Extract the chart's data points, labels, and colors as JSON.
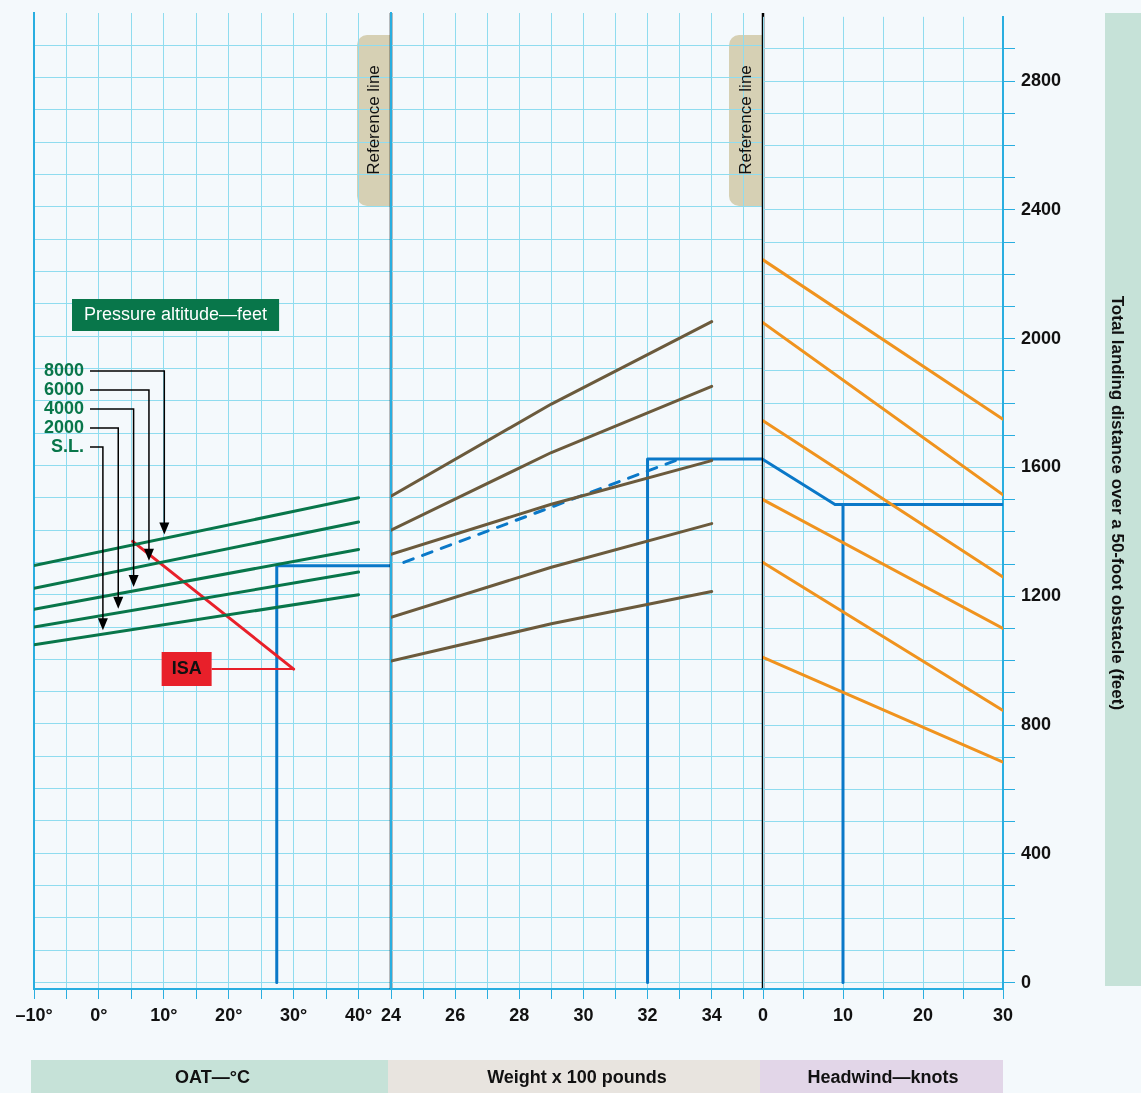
{
  "chart_data": [
    {
      "type": "line",
      "xlabel": "OAT—°C",
      "legend_title": "Pressure altitude—feet",
      "grid": true,
      "tick_labels": "x",
      "xlim": [
        -10,
        45
      ],
      "xticks": [
        {
          "value": -10,
          "label": "–10°"
        },
        {
          "value": -5,
          "label": null
        },
        {
          "value": 0,
          "label": "0°"
        },
        {
          "value": 5,
          "label": null
        },
        {
          "value": 10,
          "label": "10°"
        },
        {
          "value": 15,
          "label": null
        },
        {
          "value": 20,
          "label": "20°"
        },
        {
          "value": 25,
          "label": null
        },
        {
          "value": 30,
          "label": "30°"
        },
        {
          "value": 35,
          "label": null
        },
        {
          "value": 40,
          "label": "40°"
        }
      ],
      "ylim": [
        -20,
        3000
      ],
      "yticks": [
        0,
        {
          "value": 100,
          "label": null
        },
        {
          "value": 200,
          "label": null
        },
        {
          "value": 300,
          "label": null
        },
        400,
        {
          "value": 500,
          "label": null
        },
        {
          "value": 600,
          "label": null
        },
        {
          "value": 700,
          "label": null
        },
        800,
        {
          "value": 900,
          "label": null
        },
        {
          "value": 1000,
          "label": null
        },
        {
          "value": 1100,
          "label": null
        },
        1200,
        {
          "value": 1300,
          "label": null
        },
        {
          "value": 1400,
          "label": null
        },
        {
          "value": 1500,
          "label": null
        },
        1600,
        {
          "value": 1700,
          "label": null
        },
        {
          "value": 1800,
          "label": null
        },
        {
          "value": 1900,
          "label": null
        },
        2000,
        {
          "value": 2100,
          "label": null
        },
        {
          "value": 2200,
          "label": null
        },
        {
          "value": 2300,
          "label": null
        },
        2400,
        {
          "value": 2500,
          "label": null
        },
        {
          "value": 2600,
          "label": null
        },
        {
          "value": 2700,
          "label": null
        },
        2800,
        {
          "value": 2900,
          "label": null
        }
      ],
      "ref_lines": [
        {
          "axis": "x",
          "value": 45,
          "label": "Reference line",
          "color": "#000000"
        }
      ],
      "series": [
        {
          "name": "8000",
          "color": "#08764a",
          "x": [
            -10,
            40
          ],
          "values": [
            1290,
            1500
          ]
        },
        {
          "name": "6000",
          "color": "#08764a",
          "x": [
            -10,
            40
          ],
          "values": [
            1220,
            1425
          ]
        },
        {
          "name": "4000",
          "color": "#08764a",
          "x": [
            -10,
            40
          ],
          "values": [
            1155,
            1340
          ]
        },
        {
          "name": "2000",
          "color": "#08764a",
          "x": [
            -10,
            40
          ],
          "values": [
            1100,
            1270
          ]
        },
        {
          "name": "S.L.",
          "color": "#08764a",
          "x": [
            -10,
            40
          ],
          "values": [
            1045,
            1200
          ]
        },
        {
          "name": "ISA",
          "color": "#e8202a",
          "x": [
            5.2,
            30
          ],
          "values": [
            1365,
            970
          ]
        },
        {
          "color": "#0a78c8",
          "x": [
            27.4,
            27.4,
            45
          ],
          "values": [
            0,
            1290,
            1290
          ]
        }
      ]
    },
    {
      "type": "line",
      "xlabel": "Weight x 100 pounds",
      "grid": true,
      "tick_labels": "x",
      "xlim": [
        24,
        35.6
      ],
      "xticks": [
        24,
        {
          "value": 25,
          "label": null
        },
        26,
        {
          "value": 27,
          "label": null
        },
        28,
        {
          "value": 29,
          "label": null
        },
        30,
        {
          "value": 31,
          "label": null
        },
        32,
        {
          "value": 33,
          "label": null
        },
        34,
        {
          "value": 35,
          "label": null
        }
      ],
      "ylim": [
        -20,
        3000
      ],
      "yticks": [
        0,
        {
          "value": 100,
          "label": null
        },
        {
          "value": 200,
          "label": null
        },
        {
          "value": 300,
          "label": null
        },
        400,
        {
          "value": 500,
          "label": null
        },
        {
          "value": 600,
          "label": null
        },
        {
          "value": 700,
          "label": null
        },
        800,
        {
          "value": 900,
          "label": null
        },
        {
          "value": 1000,
          "label": null
        },
        {
          "value": 1100,
          "label": null
        },
        1200,
        {
          "value": 1300,
          "label": null
        },
        {
          "value": 1400,
          "label": null
        },
        {
          "value": 1500,
          "label": null
        },
        1600,
        {
          "value": 1700,
          "label": null
        },
        {
          "value": 1800,
          "label": null
        },
        {
          "value": 1900,
          "label": null
        },
        2000,
        {
          "value": 2100,
          "label": null
        },
        {
          "value": 2200,
          "label": null
        },
        {
          "value": 2300,
          "label": null
        },
        2400,
        {
          "value": 2500,
          "label": null
        },
        {
          "value": 2600,
          "label": null
        },
        {
          "value": 2700,
          "label": null
        },
        2800,
        {
          "value": 2900,
          "label": null
        }
      ],
      "ref_lines": [
        {
          "axis": "x",
          "value": 35.6,
          "label": "Reference line",
          "color": "#000000"
        }
      ],
      "series": [
        {
          "color": "#6b5a3c",
          "x": [
            24,
            29,
            34
          ],
          "values": [
            1505,
            1790,
            2045
          ]
        },
        {
          "color": "#6b5a3c",
          "x": [
            24,
            29,
            34
          ],
          "values": [
            1400,
            1640,
            1845
          ]
        },
        {
          "color": "#6b5a3c",
          "x": [
            24,
            29,
            34
          ],
          "values": [
            1325,
            1480,
            1615
          ]
        },
        {
          "color": "#6b5a3c",
          "x": [
            24,
            29,
            34
          ],
          "values": [
            1130,
            1285,
            1420
          ]
        },
        {
          "color": "#6b5a3c",
          "x": [
            24,
            29,
            34
          ],
          "values": [
            995,
            1110,
            1210
          ]
        },
        {
          "color": "#0a78c8",
          "line_style": "dashed",
          "x": [
            24.4,
            33
          ],
          "values": [
            1300,
            1620
          ]
        },
        {
          "color": "#0a78c8",
          "x": [
            32,
            32,
            35.6
          ],
          "values": [
            0,
            1620,
            1620
          ]
        }
      ]
    },
    {
      "type": "line",
      "xlabel": "Headwind—knots",
      "ylabel": "Total landing distance over a 50-foot obstacle (feet)",
      "grid": true,
      "xlim": [
        0,
        30
      ],
      "xticks": [
        0,
        {
          "value": 5,
          "label": null
        },
        10,
        {
          "value": 15,
          "label": null
        },
        20,
        {
          "value": 25,
          "label": null
        },
        30
      ],
      "ylim": [
        -20,
        3000
      ],
      "yticks": [
        0,
        {
          "value": 100,
          "label": null
        },
        {
          "value": 200,
          "label": null
        },
        {
          "value": 300,
          "label": null
        },
        400,
        {
          "value": 500,
          "label": null
        },
        {
          "value": 600,
          "label": null
        },
        {
          "value": 700,
          "label": null
        },
        800,
        {
          "value": 900,
          "label": null
        },
        {
          "value": 1000,
          "label": null
        },
        {
          "value": 1100,
          "label": null
        },
        1200,
        {
          "value": 1300,
          "label": null
        },
        {
          "value": 1400,
          "label": null
        },
        {
          "value": 1500,
          "label": null
        },
        1600,
        {
          "value": 1700,
          "label": null
        },
        {
          "value": 1800,
          "label": null
        },
        {
          "value": 1900,
          "label": null
        },
        2000,
        {
          "value": 2100,
          "label": null
        },
        {
          "value": 2200,
          "label": null
        },
        {
          "value": 2300,
          "label": null
        },
        2400,
        {
          "value": 2500,
          "label": null
        },
        {
          "value": 2600,
          "label": null
        },
        {
          "value": 2700,
          "label": null
        },
        2800,
        {
          "value": 2900,
          "label": null
        }
      ],
      "series": [
        {
          "color": "#f0931e",
          "x": [
            0,
            30
          ],
          "values": [
            2245,
            1750
          ]
        },
        {
          "color": "#f0931e",
          "x": [
            0,
            30
          ],
          "values": [
            2050,
            1515
          ]
        },
        {
          "color": "#f0931e",
          "x": [
            0,
            30
          ],
          "values": [
            1745,
            1260
          ]
        },
        {
          "color": "#f0931e",
          "x": [
            0,
            30
          ],
          "values": [
            1500,
            1100
          ]
        },
        {
          "color": "#f0931e",
          "x": [
            0,
            30
          ],
          "values": [
            1305,
            845
          ]
        },
        {
          "color": "#f0931e",
          "x": [
            0,
            30
          ],
          "values": [
            1010,
            685
          ]
        },
        {
          "color": "#0a78c8",
          "x": [
            0,
            9,
            30
          ],
          "values": [
            1625,
            1485,
            1485
          ]
        },
        {
          "color": "#0a78c8",
          "x": [
            10,
            10
          ],
          "values": [
            0,
            1485
          ]
        }
      ]
    }
  ]
}
